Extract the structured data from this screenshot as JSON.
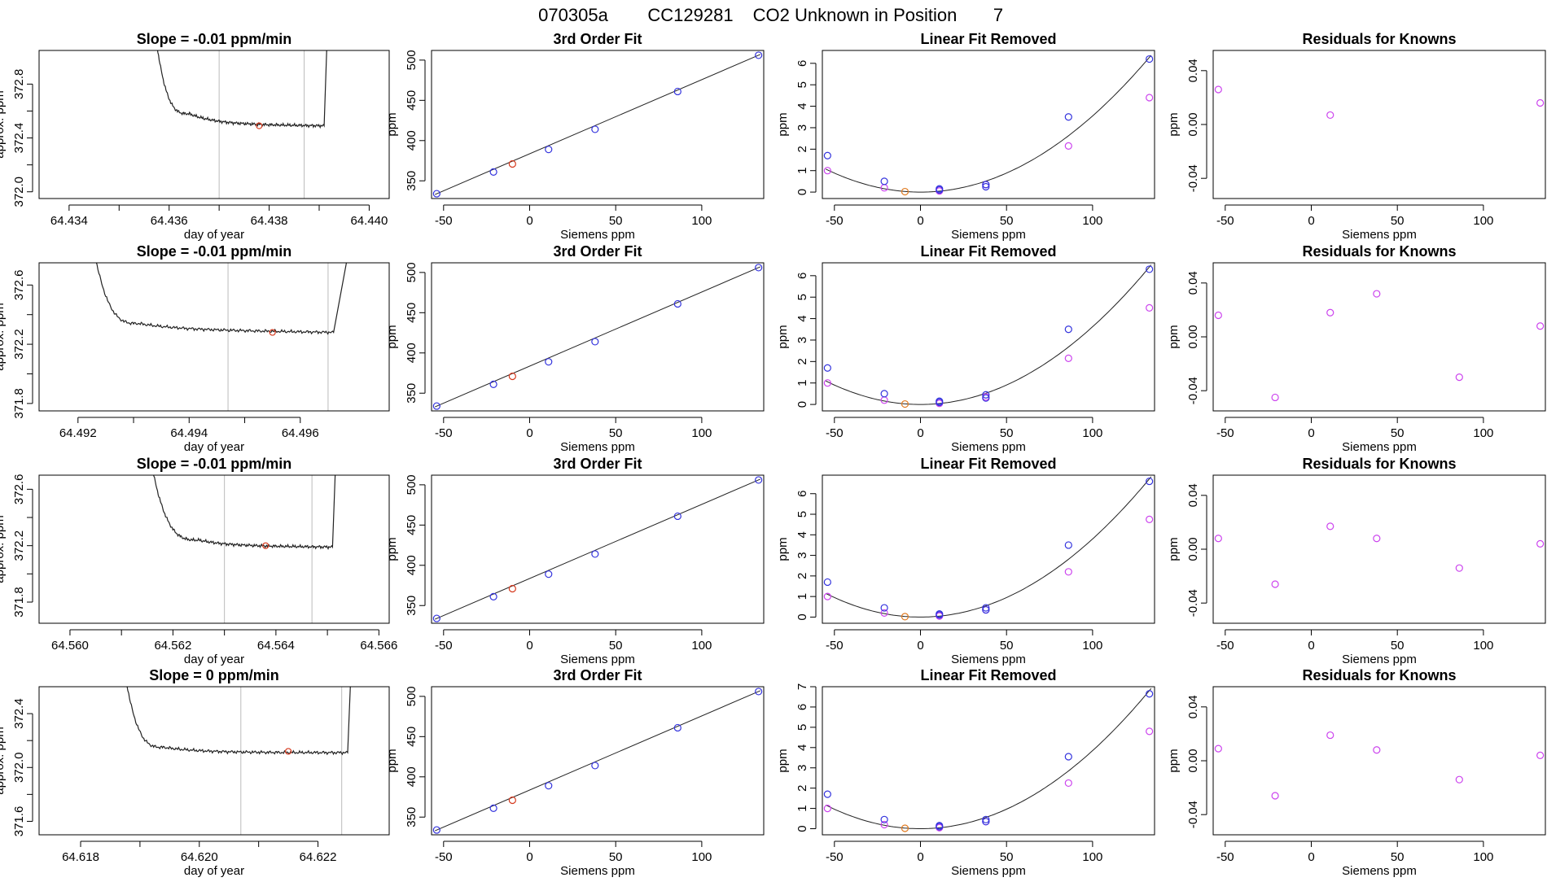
{
  "figure": {
    "title_parts": [
      "070305a",
      "CC129281",
      "CO2 Unknown in Position",
      "7"
    ]
  },
  "labels": {
    "fit_title": "3rd Order Fit",
    "linear_title": "Linear Fit Removed",
    "resid_title": "Residuals for Knowns",
    "xlabel_time": "day of year",
    "ylabel_time": "approx. ppm",
    "xlabel_siemens": "Siemens ppm",
    "ylabel_ppm": "ppm"
  },
  "colors": {
    "line": "#222222",
    "known": "#3333dd",
    "unknown": "#d63a1e",
    "unknown_linear": "#e07a20",
    "residual": "#cc44ee",
    "vline": "#bbbbbb"
  },
  "chart_data": [
    {
      "type": "line",
      "panel": "time",
      "row": 1,
      "title": "Slope =  -0.01  ppm/min",
      "xlabel": "day of year",
      "ylabel": "approx. ppm",
      "xlim": [
        64.4334,
        64.4404
      ],
      "ylim": [
        371.95,
        373.05
      ],
      "xticks": [
        "64.434",
        "64.436",
        "64.438",
        "64.440"
      ],
      "yticks": [
        "372.0",
        "372.4",
        "372.8"
      ],
      "start": 64.4356,
      "end": 64.4392,
      "edge_top": 373.6,
      "edge_end": 373.6,
      "drop_end": 64.4364,
      "drop_to": 372.58,
      "settle": 372.5,
      "flat_end": 64.4391,
      "final": 372.49,
      "vlines": [
        64.437,
        64.4387
      ],
      "marker": {
        "x": 64.4378,
        "y": 372.49
      }
    },
    {
      "type": "scatter",
      "panel": "fit",
      "row": 1,
      "title": "3rd Order Fit",
      "xlabel": "Siemens ppm",
      "ylabel": "ppm",
      "xlim": [
        -57,
        136
      ],
      "ylim": [
        328,
        512
      ],
      "xticks": [
        "-50",
        "0",
        "50",
        "100"
      ],
      "yticks": [
        "350",
        "400",
        "450",
        "500"
      ],
      "known": [
        [
          -54,
          334
        ],
        [
          -21,
          361
        ],
        [
          11,
          389
        ],
        [
          38,
          414
        ],
        [
          86,
          461
        ],
        [
          133,
          506
        ]
      ],
      "unknown": [
        [
          -10,
          371
        ]
      ],
      "curve": [
        [
          -55,
          333
        ],
        [
          134,
          507
        ]
      ]
    },
    {
      "type": "scatter",
      "panel": "linear",
      "row": 1,
      "title": "Linear Fit Removed",
      "xlabel": "Siemens ppm",
      "ylabel": "ppm",
      "xlim": [
        -57,
        136
      ],
      "ylim": [
        -0.3,
        6.6
      ],
      "xticks": [
        "-50",
        "0",
        "50",
        "100"
      ],
      "yticks": [
        "0",
        "1",
        "2",
        "3",
        "4",
        "5",
        "6"
      ],
      "known": [
        [
          -54,
          1.7
        ],
        [
          -21,
          0.5
        ],
        [
          11,
          0.1
        ],
        [
          11,
          0.15
        ],
        [
          38,
          0.35
        ],
        [
          38,
          0.25
        ],
        [
          86,
          3.5
        ],
        [
          133,
          6.2
        ]
      ],
      "raw": [
        [
          -54,
          1.0
        ],
        [
          -21,
          0.2
        ],
        [
          11,
          0.05
        ],
        [
          38,
          0.35
        ],
        [
          86,
          2.15
        ],
        [
          133,
          4.4
        ]
      ],
      "unknown": [
        [
          -9,
          0.02
        ]
      ],
      "quad": 0.000355,
      "xmin": -55,
      "xmax": 134
    },
    {
      "type": "scatter",
      "panel": "resid",
      "row": 1,
      "title": "Residuals for Knowns",
      "xlabel": "Siemens ppm",
      "ylabel": "ppm",
      "xlim": [
        -57,
        136
      ],
      "ylim": [
        -0.055,
        0.055
      ],
      "xticks": [
        "-50",
        "0",
        "50",
        "100"
      ],
      "yticks": [
        "-0.04",
        "0.00",
        "0.04"
      ],
      "points": [
        [
          -54,
          0.026
        ],
        [
          11,
          0.007
        ],
        [
          133,
          0.016
        ]
      ]
    },
    {
      "type": "line",
      "panel": "time",
      "row": 2,
      "title": "Slope =  -0.01  ppm/min",
      "xlabel": "day of year",
      "ylabel": "approx. ppm",
      "xlim": [
        64.4913,
        64.4976
      ],
      "ylim": [
        371.75,
        372.75
      ],
      "xticks": [
        "64.492",
        "64.494",
        "64.496"
      ],
      "yticks": [
        "371.8",
        "372.2",
        "372.6"
      ],
      "start": 64.4921,
      "end": 64.4971,
      "edge_top": 373.3,
      "edge_end": 373.3,
      "drop_end": 64.4931,
      "drop_to": 372.34,
      "settle": 372.3,
      "flat_end": 64.4966,
      "final": 372.28,
      "vlines": [
        64.4947,
        64.4965
      ],
      "marker": {
        "x": 64.4955,
        "y": 372.28
      }
    },
    {
      "type": "scatter",
      "panel": "fit",
      "row": 2,
      "title": "3rd Order Fit",
      "xlabel": "Siemens ppm",
      "ylabel": "ppm",
      "xlim": [
        -57,
        136
      ],
      "ylim": [
        328,
        512
      ],
      "xticks": [
        "-50",
        "0",
        "50",
        "100"
      ],
      "yticks": [
        "350",
        "400",
        "450",
        "500"
      ],
      "known": [
        [
          -54,
          334
        ],
        [
          -21,
          361
        ],
        [
          11,
          389
        ],
        [
          38,
          414
        ],
        [
          86,
          461
        ],
        [
          133,
          506
        ]
      ],
      "unknown": [
        [
          -10,
          371
        ]
      ],
      "curve": [
        [
          -55,
          333
        ],
        [
          134,
          507
        ]
      ]
    },
    {
      "type": "scatter",
      "panel": "linear",
      "row": 2,
      "title": "Linear Fit Removed",
      "xlabel": "Siemens ppm",
      "ylabel": "ppm",
      "xlim": [
        -57,
        136
      ],
      "ylim": [
        -0.3,
        6.6
      ],
      "xticks": [
        "-50",
        "0",
        "50",
        "100"
      ],
      "yticks": [
        "0",
        "1",
        "2",
        "3",
        "4",
        "5",
        "6"
      ],
      "known": [
        [
          -54,
          1.7
        ],
        [
          -21,
          0.5
        ],
        [
          11,
          0.1
        ],
        [
          11,
          0.15
        ],
        [
          38,
          0.45
        ],
        [
          38,
          0.3
        ],
        [
          86,
          3.5
        ],
        [
          133,
          6.3
        ]
      ],
      "raw": [
        [
          -54,
          1.0
        ],
        [
          -21,
          0.2
        ],
        [
          11,
          0.05
        ],
        [
          38,
          0.35
        ],
        [
          86,
          2.15
        ],
        [
          133,
          4.5
        ]
      ],
      "unknown": [
        [
          -9,
          0.02
        ]
      ],
      "quad": 0.000362,
      "xmin": -55,
      "xmax": 134
    },
    {
      "type": "scatter",
      "panel": "resid",
      "row": 2,
      "title": "Residuals for Knowns",
      "xlabel": "Siemens ppm",
      "ylabel": "ppm",
      "xlim": [
        -57,
        136
      ],
      "ylim": [
        -0.055,
        0.055
      ],
      "xticks": [
        "-50",
        "0",
        "50",
        "100"
      ],
      "yticks": [
        "-0.04",
        "0.00",
        "0.04"
      ],
      "points": [
        [
          -54,
          0.016
        ],
        [
          -21,
          -0.045
        ],
        [
          11,
          0.018
        ],
        [
          38,
          0.032
        ],
        [
          86,
          -0.03
        ],
        [
          133,
          0.008
        ]
      ]
    },
    {
      "type": "line",
      "panel": "time",
      "row": 3,
      "title": "Slope =  -0.01  ppm/min",
      "xlabel": "day of year",
      "ylabel": "approx. ppm",
      "xlim": [
        64.5594,
        64.5662
      ],
      "ylim": [
        371.65,
        372.7
      ],
      "xticks": [
        "64.560",
        "64.562",
        "64.564",
        "64.566"
      ],
      "yticks": [
        "371.8",
        "372.2",
        "372.6"
      ],
      "start": 64.5614,
      "end": 64.5652,
      "edge_top": 373.2,
      "edge_end": 373.2,
      "drop_end": 64.5625,
      "drop_to": 372.24,
      "settle": 372.2,
      "flat_end": 64.5651,
      "final": 372.19,
      "vlines": [
        64.563,
        64.5647
      ],
      "marker": {
        "x": 64.5638,
        "y": 372.2
      }
    },
    {
      "type": "scatter",
      "panel": "fit",
      "row": 3,
      "title": "3rd Order Fit",
      "xlabel": "Siemens ppm",
      "ylabel": "ppm",
      "xlim": [
        -57,
        136
      ],
      "ylim": [
        328,
        512
      ],
      "xticks": [
        "-50",
        "0",
        "50",
        "100"
      ],
      "yticks": [
        "350",
        "400",
        "450",
        "500"
      ],
      "known": [
        [
          -54,
          334
        ],
        [
          -21,
          361
        ],
        [
          11,
          389
        ],
        [
          38,
          414
        ],
        [
          86,
          461
        ],
        [
          133,
          506
        ]
      ],
      "unknown": [
        [
          -10,
          371
        ]
      ],
      "curve": [
        [
          -55,
          333
        ],
        [
          134,
          507
        ]
      ]
    },
    {
      "type": "scatter",
      "panel": "linear",
      "row": 3,
      "title": "Linear Fit Removed",
      "xlabel": "Siemens ppm",
      "ylabel": "ppm",
      "xlim": [
        -57,
        136
      ],
      "ylim": [
        -0.3,
        6.9
      ],
      "xticks": [
        "-50",
        "0",
        "50",
        "100"
      ],
      "yticks": [
        "0",
        "1",
        "2",
        "3",
        "4",
        "5",
        "6"
      ],
      "known": [
        [
          -54,
          1.7
        ],
        [
          -21,
          0.45
        ],
        [
          11,
          0.1
        ],
        [
          11,
          0.15
        ],
        [
          38,
          0.45
        ],
        [
          38,
          0.35
        ],
        [
          86,
          3.5
        ],
        [
          133,
          6.6
        ]
      ],
      "raw": [
        [
          -54,
          1.0
        ],
        [
          -21,
          0.2
        ],
        [
          11,
          0.05
        ],
        [
          38,
          0.35
        ],
        [
          86,
          2.2
        ],
        [
          133,
          4.75
        ]
      ],
      "unknown": [
        [
          -9,
          0.02
        ]
      ],
      "quad": 0.00038,
      "xmin": -55,
      "xmax": 134
    },
    {
      "type": "scatter",
      "panel": "resid",
      "row": 3,
      "title": "Residuals for Knowns",
      "xlabel": "Siemens ppm",
      "ylabel": "ppm",
      "xlim": [
        -57,
        136
      ],
      "ylim": [
        -0.055,
        0.055
      ],
      "xticks": [
        "-50",
        "0",
        "50",
        "100"
      ],
      "yticks": [
        "-0.04",
        "0.00",
        "0.04"
      ],
      "points": [
        [
          -54,
          0.008
        ],
        [
          -21,
          -0.026
        ],
        [
          11,
          0.017
        ],
        [
          38,
          0.008
        ],
        [
          86,
          -0.014
        ],
        [
          133,
          0.004
        ]
      ]
    },
    {
      "type": "line",
      "panel": "time",
      "row": 4,
      "title": "Slope =  0  ppm/min",
      "xlabel": "day of year",
      "ylabel": "approx. ppm",
      "xlim": [
        64.6173,
        64.6232
      ],
      "ylim": [
        371.5,
        372.6
      ],
      "xticks": [
        "64.618",
        "64.620",
        "64.622"
      ],
      "yticks": [
        "371.6",
        "372.0",
        "372.4"
      ],
      "start": 64.6186,
      "end": 64.6226,
      "edge_top": 373.2,
      "edge_end": 373.2,
      "drop_end": 64.6194,
      "drop_to": 372.15,
      "settle": 372.11,
      "flat_end": 64.6225,
      "final": 372.11,
      "vlines": [
        64.6207,
        64.6224
      ],
      "marker": {
        "x": 64.6215,
        "y": 372.12
      }
    },
    {
      "type": "scatter",
      "panel": "fit",
      "row": 4,
      "title": "3rd Order Fit",
      "xlabel": "Siemens ppm",
      "ylabel": "ppm",
      "xlim": [
        -57,
        136
      ],
      "ylim": [
        328,
        512
      ],
      "xticks": [
        "-50",
        "0",
        "50",
        "100"
      ],
      "yticks": [
        "350",
        "400",
        "450",
        "500"
      ],
      "known": [
        [
          -54,
          334
        ],
        [
          -21,
          361
        ],
        [
          11,
          389
        ],
        [
          38,
          414
        ],
        [
          86,
          461
        ],
        [
          133,
          506
        ]
      ],
      "unknown": [
        [
          -10,
          371
        ]
      ],
      "curve": [
        [
          -55,
          333
        ],
        [
          134,
          507
        ]
      ]
    },
    {
      "type": "scatter",
      "panel": "linear",
      "row": 4,
      "title": "Linear Fit Removed",
      "xlabel": "Siemens ppm",
      "ylabel": "ppm",
      "xlim": [
        -57,
        136
      ],
      "ylim": [
        -0.3,
        7.0
      ],
      "xticks": [
        "-50",
        "0",
        "50",
        "100"
      ],
      "yticks": [
        "0",
        "1",
        "2",
        "3",
        "4",
        "5",
        "6",
        "7"
      ],
      "known": [
        [
          -54,
          1.7
        ],
        [
          -21,
          0.45
        ],
        [
          11,
          0.1
        ],
        [
          11,
          0.15
        ],
        [
          38,
          0.45
        ],
        [
          38,
          0.35
        ],
        [
          86,
          3.55
        ],
        [
          133,
          6.65
        ]
      ],
      "raw": [
        [
          -54,
          1.0
        ],
        [
          -21,
          0.2
        ],
        [
          11,
          0.05
        ],
        [
          38,
          0.35
        ],
        [
          86,
          2.25
        ],
        [
          133,
          4.8
        ]
      ],
      "unknown": [
        [
          -9,
          0.02
        ]
      ],
      "quad": 0.000385,
      "xmin": -55,
      "xmax": 134
    },
    {
      "type": "scatter",
      "panel": "resid",
      "row": 4,
      "title": "Residuals for Knowns",
      "xlabel": "Siemens ppm",
      "ylabel": "ppm",
      "xlim": [
        -57,
        136
      ],
      "ylim": [
        -0.055,
        0.055
      ],
      "xticks": [
        "-50",
        "0",
        "50",
        "100"
      ],
      "yticks": [
        "-0.04",
        "0.00",
        "0.04"
      ],
      "points": [
        [
          -54,
          0.009
        ],
        [
          -21,
          -0.026
        ],
        [
          11,
          0.019
        ],
        [
          38,
          0.008
        ],
        [
          86,
          -0.014
        ],
        [
          133,
          0.004
        ]
      ]
    }
  ]
}
